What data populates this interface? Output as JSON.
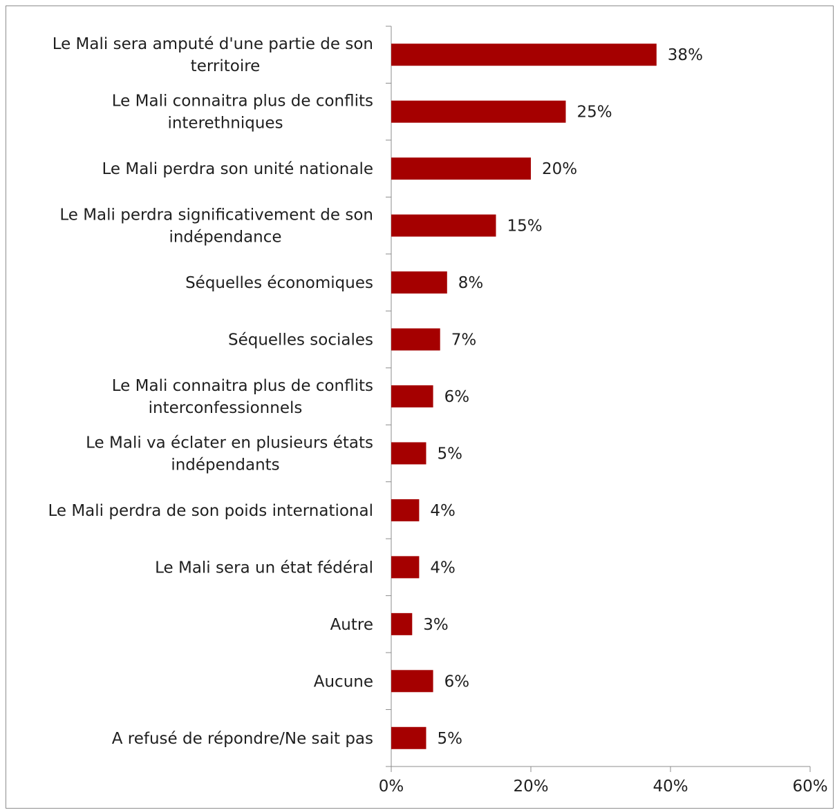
{
  "chart_data": {
    "type": "bar",
    "orientation": "horizontal",
    "categories": [
      [
        "Le Mali sera amputé d'une partie de son",
        "territoire"
      ],
      [
        "Le Mali connaitra plus de conflits",
        "interethniques"
      ],
      [
        "Le Mali perdra son unité nationale"
      ],
      [
        "Le Mali perdra significativement de son",
        "indépendance"
      ],
      [
        "Séquelles économiques"
      ],
      [
        "Séquelles sociales"
      ],
      [
        "Le Mali connaitra plus de conflits",
        "interconfessionnels"
      ],
      [
        "Le Mali va éclater en plusieurs états",
        "indépendants"
      ],
      [
        "Le Mali perdra de son poids international"
      ],
      [
        "Le Mali sera un état fédéral"
      ],
      [
        "Autre"
      ],
      [
        "Aucune"
      ],
      [
        "A refusé de répondre/Ne sait pas"
      ]
    ],
    "values": [
      38,
      25,
      20,
      15,
      8,
      7,
      6,
      5,
      4,
      4,
      3,
      6,
      5
    ],
    "data_labels": [
      "38%",
      "25%",
      "20%",
      "15%",
      "8%",
      "7%",
      "6%",
      "5%",
      "4%",
      "4%",
      "3%",
      "6%",
      "5%"
    ],
    "xlim": [
      0,
      60
    ],
    "x_ticks": [
      0,
      20,
      40,
      60
    ],
    "x_tick_labels": [
      "0%",
      "20%",
      "40%",
      "60%"
    ],
    "grid": false,
    "legend": "none",
    "bar_color": "#a50000",
    "axis_color": "#8c8c8c"
  }
}
